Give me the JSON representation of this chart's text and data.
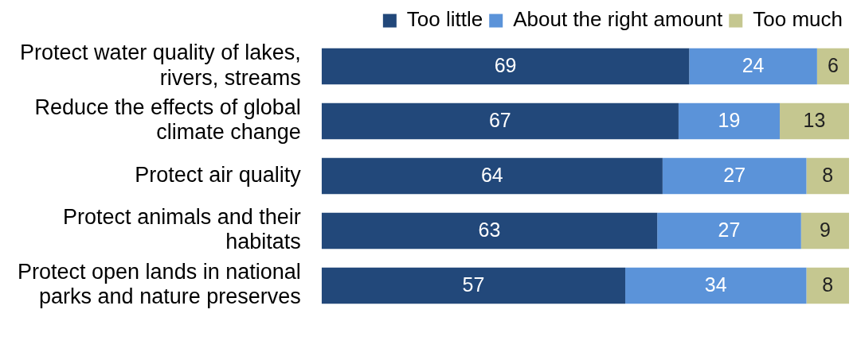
{
  "chart_data": {
    "type": "bar",
    "orientation": "horizontal",
    "stacked": true,
    "categories": [
      "Protect water quality of lakes, rivers, streams",
      "Reduce the effects of global climate change",
      "Protect air quality",
      "Protect animals and their habitats",
      "Protect open lands in national parks and nature preserves"
    ],
    "series": [
      {
        "name": "Too little",
        "color": "#22487a",
        "values": [
          69,
          67,
          64,
          63,
          57
        ]
      },
      {
        "name": "About the right amount",
        "color": "#5b93d9",
        "values": [
          24,
          19,
          27,
          27,
          34
        ]
      },
      {
        "name": "Too much",
        "color": "#c5c790",
        "values": [
          6,
          13,
          8,
          9,
          8
        ]
      }
    ],
    "data_labels": true,
    "legend": "top right",
    "tick_labels": "y"
  }
}
